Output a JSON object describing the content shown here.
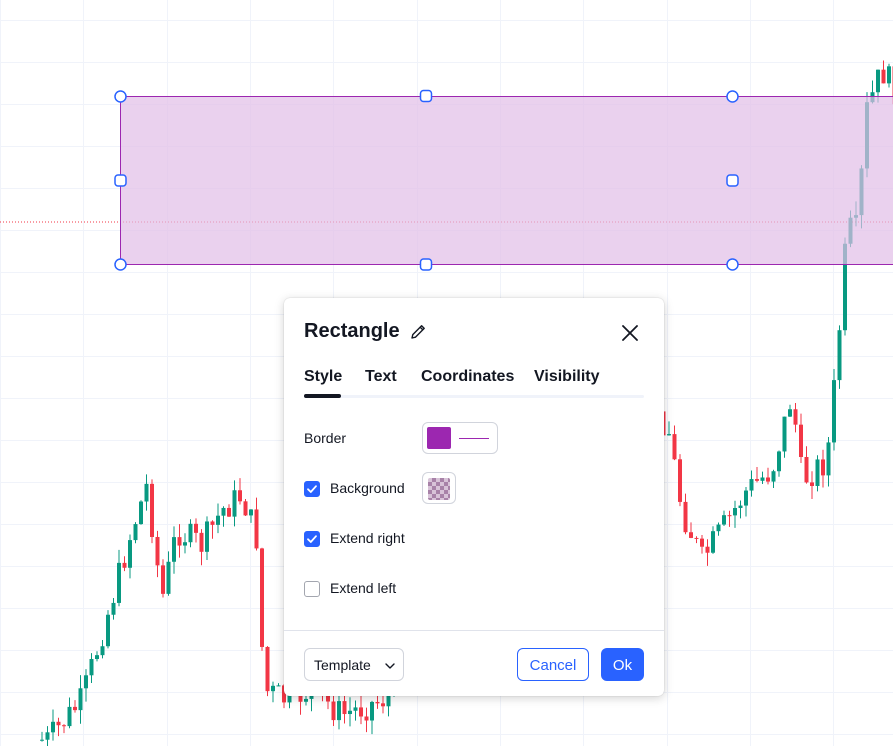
{
  "colors": {
    "accent": "#2962ff",
    "candle_up": "#089981",
    "candle_down": "#f23645",
    "rect_border": "#9c27b0",
    "rect_fill": "#e1bee7",
    "grid": "#f0f3fa"
  },
  "dialog": {
    "title": "Rectangle",
    "tabs": [
      {
        "label": "Style",
        "active": true
      },
      {
        "label": "Text",
        "active": false
      },
      {
        "label": "Coordinates",
        "active": false
      },
      {
        "label": "Visibility",
        "active": false
      }
    ],
    "style": {
      "border_label": "Border",
      "border_color": "#9c27b0",
      "background_label": "Background",
      "background_checked": true,
      "extend_right_label": "Extend right",
      "extend_right_checked": true,
      "extend_left_label": "Extend left",
      "extend_left_checked": false
    },
    "footer": {
      "template_label": "Template",
      "cancel_label": "Cancel",
      "ok_label": "Ok"
    }
  },
  "icons": {
    "edit": "pencil-icon",
    "close": "close-icon",
    "dropdown": "chevron-down-icon",
    "check": "check-icon"
  }
}
